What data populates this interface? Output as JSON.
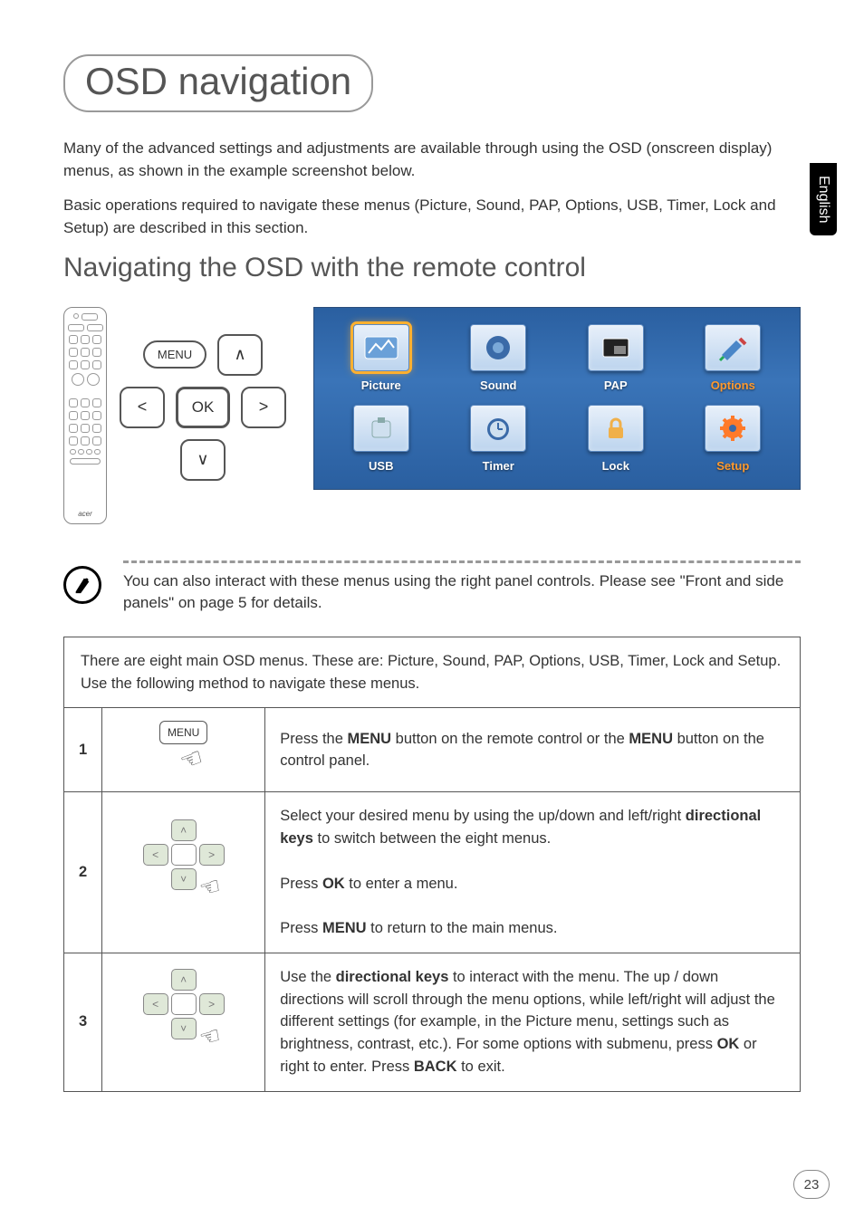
{
  "side_tab": "English",
  "title": "OSD navigation",
  "intro": {
    "p1": "Many of the advanced settings and adjustments are available through using the OSD (onscreen display) menus, as shown in the example screenshot below.",
    "p2": "Basic operations required to navigate these menus (Picture, Sound, PAP, Options, USB, Timer, Lock and Setup) are described in this section."
  },
  "subhead": "Navigating the OSD with the remote control",
  "remote": {
    "menu_label": "MENU",
    "up": "∧",
    "down": "∨",
    "left": "<",
    "right": ">",
    "ok": "OK",
    "brand": "acer"
  },
  "osd_menu": {
    "items": [
      {
        "label": "Picture",
        "selected": true,
        "icon_color": "#6aa0d8"
      },
      {
        "label": "Sound",
        "selected": false,
        "icon_color": "#3a6aa8"
      },
      {
        "label": "PAP",
        "selected": false,
        "icon_color": "#222"
      },
      {
        "label": "Options",
        "selected": false,
        "icon_color": "#4a86c8",
        "label_orange": true
      },
      {
        "label": "USB",
        "selected": false,
        "icon_color": "#cfe0ef"
      },
      {
        "label": "Timer",
        "selected": false,
        "icon_color": "#3a6aa8"
      },
      {
        "label": "Lock",
        "selected": false,
        "icon_color": "#f0b04a"
      },
      {
        "label": "Setup",
        "selected": false,
        "icon_color": "#ff7a2a",
        "label_orange": true
      }
    ]
  },
  "note": "You can also interact with these menus using the right panel controls. Please see \"Front and side panels\" on page 5 for details.",
  "table_intro": "There are eight main OSD menus. These are: Picture, Sound, PAP, Options, USB, Timer, Lock and Setup. Use the following method to navigate these menus.",
  "steps": [
    {
      "num": "1",
      "html": "Press the <b>MENU</b> button on the remote control or the <b>MENU</b> button on the control panel.",
      "diagram": "menu"
    },
    {
      "num": "2",
      "html": "Select your desired menu by using the up/down and left/right <b>directional keys</b> to switch between the eight menus.<br><br>Press <b>OK</b> to enter a menu.<br><br>Press <b>MENU</b> to return to the main menus.",
      "diagram": "dpad"
    },
    {
      "num": "3",
      "html": "Use the <b>directional keys</b> to interact with the menu. The up / down directions will scroll through the menu options, while left/right will adjust the different settings (for example, in the Picture menu, settings such as brightness, contrast, etc.). For some options with submenu, press <b>OK</b> or right to enter. Press <b>BACK</b> to exit.",
      "diagram": "dpad"
    }
  ],
  "mini_menu_label": "MENU",
  "page_number": "23",
  "colors": {
    "osd_bg_top": "#2a5fa0",
    "osd_bg_mid": "#3a74b8",
    "highlight": "#ffb030"
  }
}
